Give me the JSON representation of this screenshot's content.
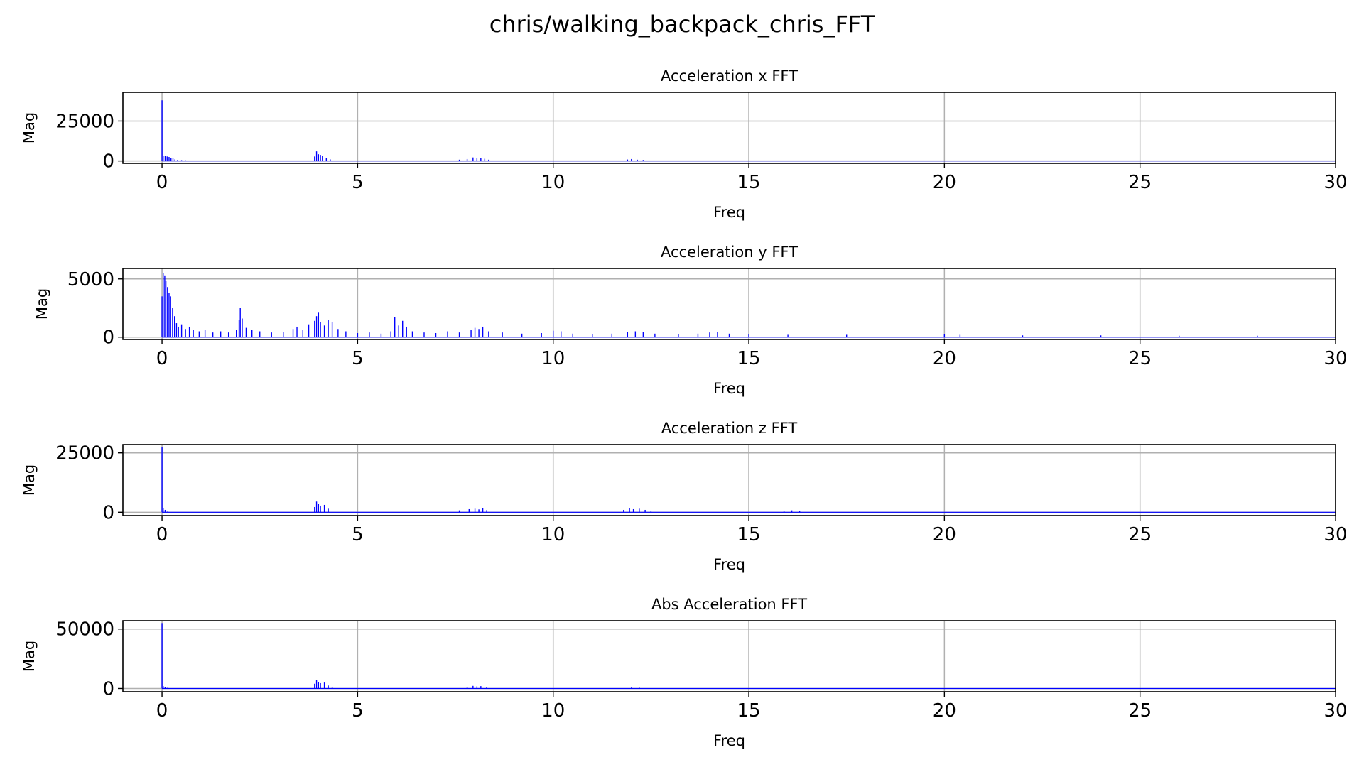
{
  "figure": {
    "title": "chris/walking_backpack_chris_FFT"
  },
  "chart_data": [
    {
      "type": "bar",
      "title": "Acceleration x FFT",
      "xlabel": "Freq",
      "ylabel": "Mag",
      "xlim": [
        -1,
        30
      ],
      "ylim": [
        -1500,
        43000
      ],
      "xticks": [
        0,
        5,
        10,
        15,
        20,
        25,
        30
      ],
      "yticks": [
        0,
        25000
      ],
      "grid": true,
      "color": "#0000ff",
      "peaks": [
        {
          "x": 0.0,
          "y": 38000
        },
        {
          "x": 0.03,
          "y": 3200
        },
        {
          "x": 0.08,
          "y": 3000
        },
        {
          "x": 0.13,
          "y": 2800
        },
        {
          "x": 0.18,
          "y": 2500
        },
        {
          "x": 0.23,
          "y": 2000
        },
        {
          "x": 0.28,
          "y": 1600
        },
        {
          "x": 0.33,
          "y": 1000
        },
        {
          "x": 0.4,
          "y": 700
        },
        {
          "x": 0.5,
          "y": 500
        },
        {
          "x": 0.6,
          "y": 400
        },
        {
          "x": 3.9,
          "y": 2800
        },
        {
          "x": 3.95,
          "y": 6000
        },
        {
          "x": 4.0,
          "y": 4200
        },
        {
          "x": 4.05,
          "y": 3800
        },
        {
          "x": 4.1,
          "y": 3000
        },
        {
          "x": 4.2,
          "y": 2000
        },
        {
          "x": 4.3,
          "y": 1000
        },
        {
          "x": 7.6,
          "y": 800
        },
        {
          "x": 7.8,
          "y": 1200
        },
        {
          "x": 7.95,
          "y": 2200
        },
        {
          "x": 8.05,
          "y": 1600
        },
        {
          "x": 8.15,
          "y": 2000
        },
        {
          "x": 8.25,
          "y": 1400
        },
        {
          "x": 8.35,
          "y": 800
        },
        {
          "x": 11.9,
          "y": 900
        },
        {
          "x": 12.0,
          "y": 1200
        },
        {
          "x": 12.15,
          "y": 800
        },
        {
          "x": 12.3,
          "y": 600
        }
      ]
    },
    {
      "type": "bar",
      "title": "Acceleration y FFT",
      "xlabel": "Freq",
      "ylabel": "Mag",
      "xlim": [
        -1,
        30
      ],
      "ylim": [
        -200,
        5900
      ],
      "xticks": [
        0,
        5,
        10,
        15,
        20,
        25,
        30
      ],
      "yticks": [
        0,
        5000
      ],
      "grid": true,
      "color": "#0000ff",
      "peaks": [
        {
          "x": 0.0,
          "y": 3500
        },
        {
          "x": 0.03,
          "y": 5500
        },
        {
          "x": 0.07,
          "y": 5300
        },
        {
          "x": 0.1,
          "y": 4800
        },
        {
          "x": 0.14,
          "y": 4300
        },
        {
          "x": 0.18,
          "y": 3800
        },
        {
          "x": 0.22,
          "y": 3500
        },
        {
          "x": 0.27,
          "y": 2500
        },
        {
          "x": 0.32,
          "y": 1800
        },
        {
          "x": 0.37,
          "y": 1200
        },
        {
          "x": 0.42,
          "y": 900
        },
        {
          "x": 0.5,
          "y": 1100
        },
        {
          "x": 0.6,
          "y": 700
        },
        {
          "x": 0.7,
          "y": 900
        },
        {
          "x": 0.8,
          "y": 600
        },
        {
          "x": 0.95,
          "y": 500
        },
        {
          "x": 1.1,
          "y": 600
        },
        {
          "x": 1.3,
          "y": 400
        },
        {
          "x": 1.5,
          "y": 500
        },
        {
          "x": 1.7,
          "y": 400
        },
        {
          "x": 1.9,
          "y": 600
        },
        {
          "x": 1.97,
          "y": 1500
        },
        {
          "x": 2.0,
          "y": 2500
        },
        {
          "x": 2.05,
          "y": 1600
        },
        {
          "x": 2.15,
          "y": 800
        },
        {
          "x": 2.3,
          "y": 600
        },
        {
          "x": 2.5,
          "y": 500
        },
        {
          "x": 2.8,
          "y": 400
        },
        {
          "x": 3.1,
          "y": 450
        },
        {
          "x": 3.35,
          "y": 700
        },
        {
          "x": 3.45,
          "y": 900
        },
        {
          "x": 3.6,
          "y": 600
        },
        {
          "x": 3.75,
          "y": 1100
        },
        {
          "x": 3.9,
          "y": 1400
        },
        {
          "x": 3.95,
          "y": 1800
        },
        {
          "x": 4.0,
          "y": 2100
        },
        {
          "x": 4.05,
          "y": 1300
        },
        {
          "x": 4.15,
          "y": 1000
        },
        {
          "x": 4.25,
          "y": 1500
        },
        {
          "x": 4.35,
          "y": 1300
        },
        {
          "x": 4.5,
          "y": 700
        },
        {
          "x": 4.7,
          "y": 500
        },
        {
          "x": 5.0,
          "y": 350
        },
        {
          "x": 5.3,
          "y": 400
        },
        {
          "x": 5.6,
          "y": 300
        },
        {
          "x": 5.85,
          "y": 500
        },
        {
          "x": 5.95,
          "y": 1700
        },
        {
          "x": 6.05,
          "y": 1000
        },
        {
          "x": 6.15,
          "y": 1400
        },
        {
          "x": 6.25,
          "y": 900
        },
        {
          "x": 6.4,
          "y": 500
        },
        {
          "x": 6.7,
          "y": 400
        },
        {
          "x": 7.0,
          "y": 350
        },
        {
          "x": 7.3,
          "y": 500
        },
        {
          "x": 7.6,
          "y": 400
        },
        {
          "x": 7.9,
          "y": 600
        },
        {
          "x": 8.0,
          "y": 800
        },
        {
          "x": 8.1,
          "y": 700
        },
        {
          "x": 8.2,
          "y": 900
        },
        {
          "x": 8.35,
          "y": 500
        },
        {
          "x": 8.7,
          "y": 400
        },
        {
          "x": 9.2,
          "y": 300
        },
        {
          "x": 9.7,
          "y": 350
        },
        {
          "x": 10.0,
          "y": 550
        },
        {
          "x": 10.2,
          "y": 500
        },
        {
          "x": 10.5,
          "y": 300
        },
        {
          "x": 11.0,
          "y": 250
        },
        {
          "x": 11.5,
          "y": 300
        },
        {
          "x": 11.9,
          "y": 450
        },
        {
          "x": 12.1,
          "y": 500
        },
        {
          "x": 12.3,
          "y": 450
        },
        {
          "x": 12.6,
          "y": 300
        },
        {
          "x": 13.2,
          "y": 250
        },
        {
          "x": 13.7,
          "y": 300
        },
        {
          "x": 14.0,
          "y": 400
        },
        {
          "x": 14.2,
          "y": 450
        },
        {
          "x": 14.5,
          "y": 300
        },
        {
          "x": 15.0,
          "y": 250
        },
        {
          "x": 16.0,
          "y": 200
        },
        {
          "x": 17.5,
          "y": 200
        },
        {
          "x": 20.0,
          "y": 250
        },
        {
          "x": 20.4,
          "y": 200
        },
        {
          "x": 22.0,
          "y": 150
        },
        {
          "x": 24.0,
          "y": 150
        },
        {
          "x": 26.0,
          "y": 120
        },
        {
          "x": 28.0,
          "y": 120
        }
      ]
    },
    {
      "type": "bar",
      "title": "Acceleration z FFT",
      "xlabel": "Freq",
      "ylabel": "Mag",
      "xlim": [
        -1,
        30
      ],
      "ylim": [
        -1400,
        28500
      ],
      "xticks": [
        0,
        5,
        10,
        15,
        20,
        25,
        30
      ],
      "yticks": [
        0,
        25000
      ],
      "grid": true,
      "color": "#0000ff",
      "peaks": [
        {
          "x": 0.0,
          "y": 27500
        },
        {
          "x": 0.03,
          "y": 1800
        },
        {
          "x": 0.08,
          "y": 1000
        },
        {
          "x": 0.15,
          "y": 600
        },
        {
          "x": 3.9,
          "y": 2200
        },
        {
          "x": 3.95,
          "y": 4500
        },
        {
          "x": 4.0,
          "y": 3400
        },
        {
          "x": 4.05,
          "y": 2800
        },
        {
          "x": 4.15,
          "y": 3100
        },
        {
          "x": 4.25,
          "y": 1500
        },
        {
          "x": 7.6,
          "y": 800
        },
        {
          "x": 7.85,
          "y": 1300
        },
        {
          "x": 8.0,
          "y": 1500
        },
        {
          "x": 8.1,
          "y": 1200
        },
        {
          "x": 8.2,
          "y": 1700
        },
        {
          "x": 8.3,
          "y": 900
        },
        {
          "x": 11.8,
          "y": 1000
        },
        {
          "x": 11.95,
          "y": 1700
        },
        {
          "x": 12.05,
          "y": 1300
        },
        {
          "x": 12.2,
          "y": 1500
        },
        {
          "x": 12.35,
          "y": 1000
        },
        {
          "x": 12.5,
          "y": 600
        },
        {
          "x": 15.9,
          "y": 600
        },
        {
          "x": 16.1,
          "y": 800
        },
        {
          "x": 16.3,
          "y": 500
        }
      ]
    },
    {
      "type": "bar",
      "title": "Abs Acceleration FFT",
      "xlabel": "Freq",
      "ylabel": "Mag",
      "xlim": [
        -1,
        30
      ],
      "ylim": [
        -2700,
        57000
      ],
      "xticks": [
        0,
        5,
        10,
        15,
        20,
        25,
        30
      ],
      "yticks": [
        0,
        50000
      ],
      "grid": true,
      "color": "#0000ff",
      "peaks": [
        {
          "x": 0.0,
          "y": 55000
        },
        {
          "x": 0.03,
          "y": 2000
        },
        {
          "x": 0.08,
          "y": 1200
        },
        {
          "x": 0.15,
          "y": 800
        },
        {
          "x": 3.9,
          "y": 4000
        },
        {
          "x": 3.95,
          "y": 7000
        },
        {
          "x": 4.0,
          "y": 5500
        },
        {
          "x": 4.05,
          "y": 4500
        },
        {
          "x": 4.15,
          "y": 5000
        },
        {
          "x": 4.25,
          "y": 2500
        },
        {
          "x": 4.35,
          "y": 1500
        },
        {
          "x": 7.8,
          "y": 1200
        },
        {
          "x": 7.95,
          "y": 2200
        },
        {
          "x": 8.05,
          "y": 1800
        },
        {
          "x": 8.15,
          "y": 2000
        },
        {
          "x": 8.3,
          "y": 1200
        },
        {
          "x": 12.0,
          "y": 800
        },
        {
          "x": 12.2,
          "y": 700
        }
      ]
    }
  ]
}
